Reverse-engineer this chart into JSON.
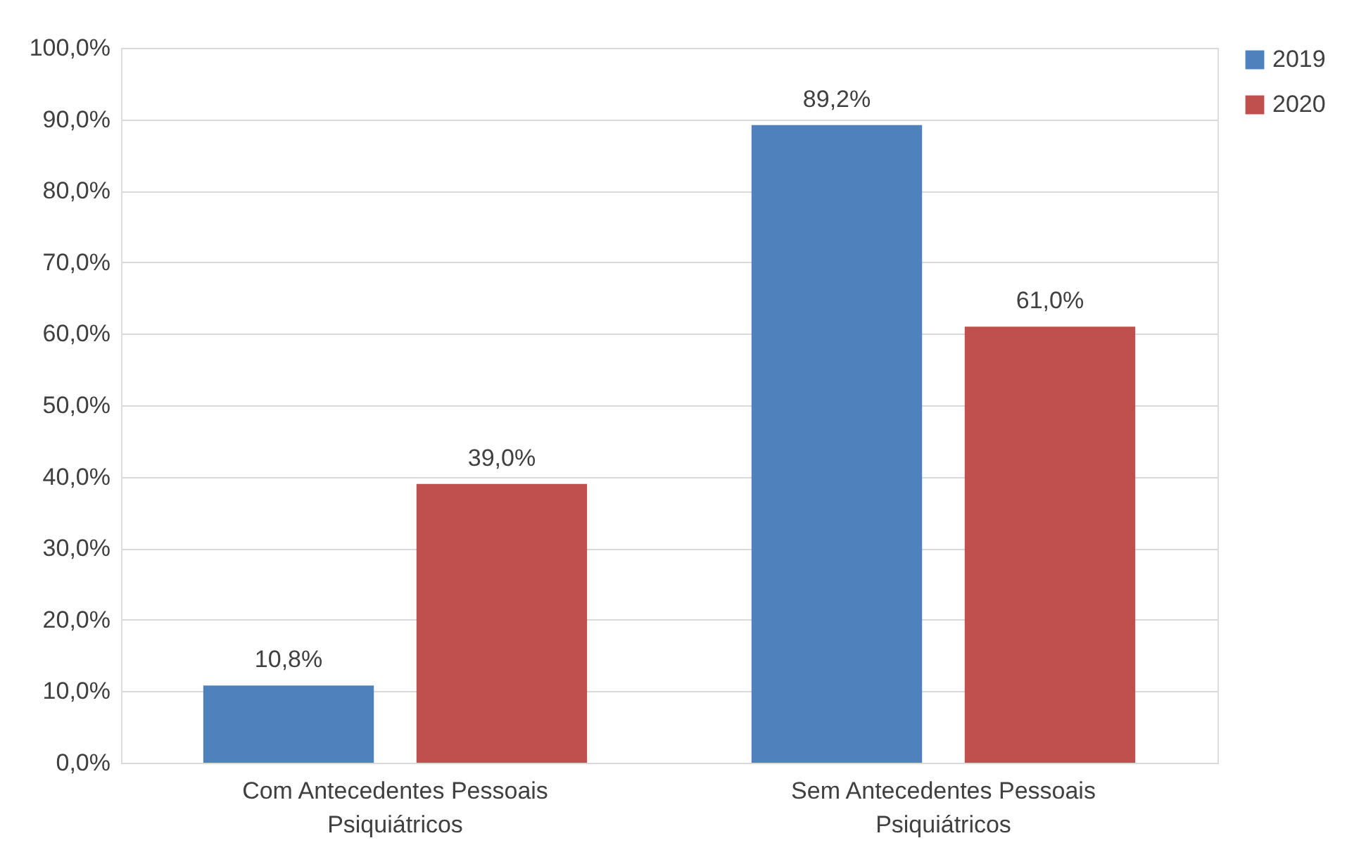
{
  "chart_data": {
    "type": "bar",
    "categories": [
      "Com Antecedentes Pessoais Psiquiátricos",
      "Sem Antecedentes Pessoais Psiquiátricos"
    ],
    "series": [
      {
        "name": "2019",
        "color": "#4f81bd",
        "values": [
          10.8,
          89.2
        ],
        "value_labels": [
          "10,8%",
          "89,2%"
        ]
      },
      {
        "name": "2020",
        "color": "#c0504d",
        "values": [
          39.0,
          61.0
        ],
        "value_labels": [
          "39,0%",
          "61,0%"
        ]
      }
    ],
    "ylim": [
      0,
      100
    ],
    "yticks": [
      {
        "value": 0,
        "label": "0,0%"
      },
      {
        "value": 10,
        "label": "10,0%"
      },
      {
        "value": 20,
        "label": "20,0%"
      },
      {
        "value": 30,
        "label": "30,0%"
      },
      {
        "value": 40,
        "label": "40,0%"
      },
      {
        "value": 50,
        "label": "50,0%"
      },
      {
        "value": 60,
        "label": "60,0%"
      },
      {
        "value": 70,
        "label": "70,0%"
      },
      {
        "value": 80,
        "label": "80,0%"
      },
      {
        "value": 90,
        "label": "90,0%"
      },
      {
        "value": 100,
        "label": "100,0%"
      }
    ],
    "grid": "y",
    "legend": "right"
  }
}
